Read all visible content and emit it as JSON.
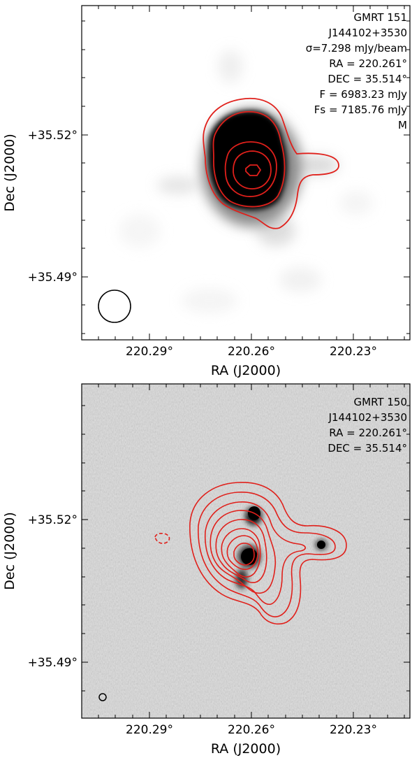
{
  "panels": [
    {
      "id": "top",
      "annotations": [
        "GMRT 151",
        "J144102+3530",
        "σ=7.298 mJy/beam",
        "RA = 220.261°",
        "DEC = 35.514°",
        "F = 6983.23 mJy",
        "Fs = 7185.76 mJy",
        "M"
      ],
      "x_ticks": [
        "220.29°",
        "220.26°",
        "220.23°"
      ],
      "y_ticks": [
        "+35.52°",
        "+35.49°"
      ],
      "xlabel": "RA (J2000)",
      "ylabel": "Dec (J2000)"
    },
    {
      "id": "bottom",
      "annotations": [
        "GMRT 150",
        "J144102+3530",
        "RA = 220.261°",
        "DEC = 35.514°"
      ],
      "x_ticks": [
        "220.29°",
        "220.26°",
        "220.23°"
      ],
      "y_ticks": [
        "+35.52°",
        "+35.49°"
      ],
      "xlabel": "RA (J2000)",
      "ylabel": "Dec (J2000)"
    }
  ],
  "colors": {
    "contour": "#e0201b",
    "frame": "#000000",
    "background_top": "#ffffff",
    "background_bottom": "#dcdcdc"
  }
}
